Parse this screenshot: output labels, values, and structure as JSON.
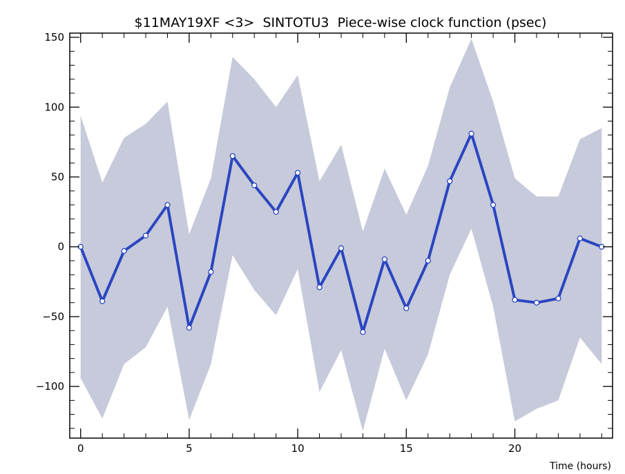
{
  "chart_data": {
    "type": "line",
    "title": "$11MAY19XF <3>  SINTOTU3  Piece-wise clock function (psec)",
    "xlabel": "Time (hours)",
    "ylabel": "",
    "xlim": [
      -0.5,
      24.5
    ],
    "ylim": [
      -137,
      153
    ],
    "xticks": [
      0,
      5,
      10,
      15,
      20
    ],
    "yticks": [
      -100,
      -50,
      0,
      50,
      100,
      150
    ],
    "xtick_labels": [
      "0",
      "5",
      "10",
      "15",
      "20"
    ],
    "ytick_labels": [
      "−100",
      "−50",
      "0",
      "50",
      "100",
      "150"
    ],
    "grid": false,
    "colors": {
      "line": "#2b45c0",
      "band": "#c6cadb",
      "marker_fill": "#ffffff"
    },
    "series": [
      {
        "x": [
          0,
          1,
          2,
          3,
          4,
          5,
          6,
          7,
          8,
          9,
          10,
          11,
          12,
          13,
          14,
          15,
          16,
          17,
          18,
          19,
          20,
          21,
          22,
          23,
          24
        ],
        "values": [
          0,
          -39,
          -3,
          8,
          30,
          -58,
          -18,
          65,
          44,
          25,
          53,
          -29,
          -1,
          -61,
          -9,
          -44,
          -10,
          47,
          81,
          30,
          -38,
          -40,
          -37,
          6,
          0
        ],
        "upper": [
          94,
          46,
          78,
          88,
          104,
          9,
          49,
          136,
          120,
          100,
          123,
          47,
          73,
          11,
          56,
          23,
          58,
          114,
          149,
          104,
          49,
          36,
          36,
          77,
          85
        ],
        "lower": [
          -94,
          -123,
          -84,
          -72,
          -43,
          -124,
          -84,
          -6,
          -31,
          -49,
          -16,
          -104,
          -74,
          -132,
          -73,
          -110,
          -77,
          -20,
          13,
          -43,
          -125,
          -116,
          -110,
          -65,
          -84
        ]
      }
    ]
  }
}
